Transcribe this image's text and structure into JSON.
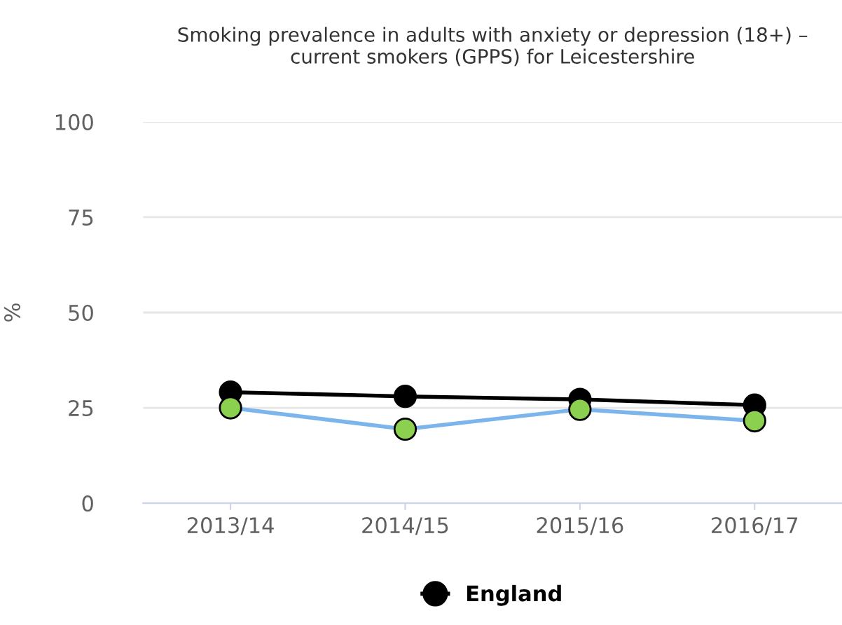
{
  "chart_data": {
    "type": "line",
    "title": "Smoking prevalence in adults with anxiety or depression (18+) –\ncurrent smokers (GPPS) for Leicestershire",
    "ylabel": "%",
    "categories": [
      "2013/14",
      "2014/15",
      "2015/16",
      "2016/17"
    ],
    "series": [
      {
        "color": "#7cb5ec",
        "colors": [
          "#8cd04f",
          "#8cd04f",
          "#8cd04f",
          "#8cd04f"
        ],
        "values": [
          25.0,
          19.4,
          24.6,
          21.6
        ]
      },
      {
        "name": "England",
        "color": "#000000",
        "values": [
          29.1,
          28.0,
          27.2,
          25.7
        ]
      }
    ],
    "ylim": [
      0,
      100
    ],
    "yticks": [
      0,
      25,
      50,
      75,
      100
    ],
    "grid": "y",
    "legend": "bottom",
    "marker": "circle"
  }
}
